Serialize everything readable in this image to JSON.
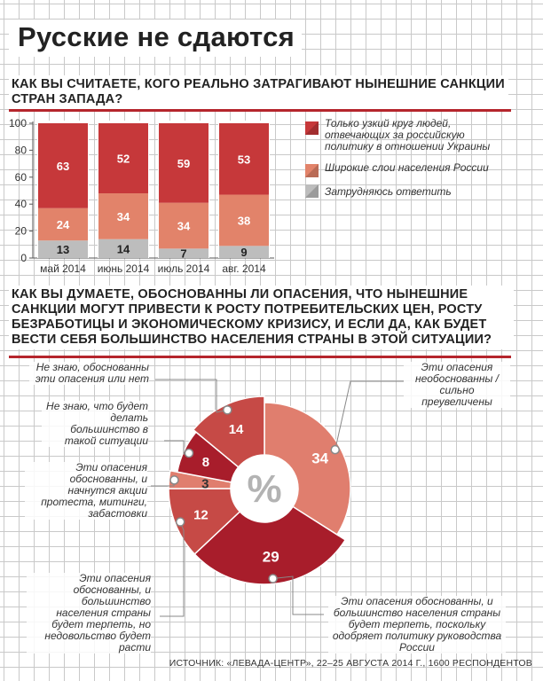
{
  "title": "Русские не сдаются",
  "q1": "КАК ВЫ СЧИТАЕТЕ, КОГО РЕАЛЬНО ЗАТРАГИВАЮТ НЫНЕШНИЕ САНКЦИИ СТРАН ЗАПАДА?",
  "q2": "КАК ВЫ ДУМАЕТЕ, ОБОСНОВАННЫ ЛИ ОПАСЕНИЯ, ЧТО НЫНЕШНИЕ САНКЦИИ МОГУТ ПРИВЕСТИ К РОСТУ ПОТРЕБИТЕЛЬСКИХ ЦЕН, РОСТУ БЕЗРАБОТИЦЫ И ЭКОНОМИЧЕСКОМУ КРИЗИСУ, И ЕСЛИ ДА, КАК БУДЕТ ВЕСТИ СЕБЯ БОЛЬШИНСТВО НАСЕЛЕНИЯ СТРАНЫ В ЭТОЙ СИТУАЦИИ?",
  "source": "ИСТОЧНИК: «ЛЕВАДА-ЦЕНТР», 22–25 АВГУСТА 2014 Г., 1600 РЕСПОНДЕНТОВ",
  "colors": {
    "dark": "#b5252c",
    "mid": "#c6383a",
    "light": "#e2836a",
    "gray": "#bdbdbd",
    "pie_dark": "#a81d2b",
    "pie_light": "#e07e6e"
  },
  "chart_data": [
    {
      "type": "bar",
      "stacked": true,
      "categories": [
        "май 2014",
        "июнь 2014",
        "июль 2014",
        "авг. 2014"
      ],
      "ylim": [
        0,
        100
      ],
      "yticks": [
        0,
        20,
        40,
        60,
        80,
        100
      ],
      "legend_position": "right",
      "series": [
        {
          "name": "Затрудняюсь ответить",
          "values": [
            13,
            14,
            7,
            9
          ],
          "color": "#bdbdbd"
        },
        {
          "name": "Широкие слои населения России",
          "values": [
            24,
            34,
            34,
            38
          ],
          "color": "#e2836a"
        },
        {
          "name": "Только узкий круг людей, отвечающих за российскую политику в отношении Украины",
          "values": [
            63,
            52,
            59,
            53
          ],
          "color": "#c6383a"
        }
      ]
    },
    {
      "type": "pie",
      "center_label": "%",
      "slices": [
        {
          "label": "Эти опасения необоснованны / сильно преувеличены",
          "value": 34,
          "color": "#e07e6e"
        },
        {
          "label": "Эти опасения обоснованны, и большинство населения страны будет терпеть, поскольку одобряет политику руководства России",
          "value": 29,
          "color": "#a81d2b"
        },
        {
          "label": "Эти опасения обоснованны, и большинство населения страны будет терпеть, но недовольство будет расти",
          "value": 12,
          "color": "#c64a46"
        },
        {
          "label": "Эти опасения обоснованны, и начнутся акции протеста, митинги, забастовки",
          "value": 3,
          "color": "#e07e6e"
        },
        {
          "label": "Не знаю, что будет делать большинство в такой ситуации",
          "value": 8,
          "color": "#a81d2b"
        },
        {
          "label": "Не знаю, обоснованны эти опасения или нет",
          "value": 14,
          "color": "#c64a46"
        }
      ]
    }
  ]
}
